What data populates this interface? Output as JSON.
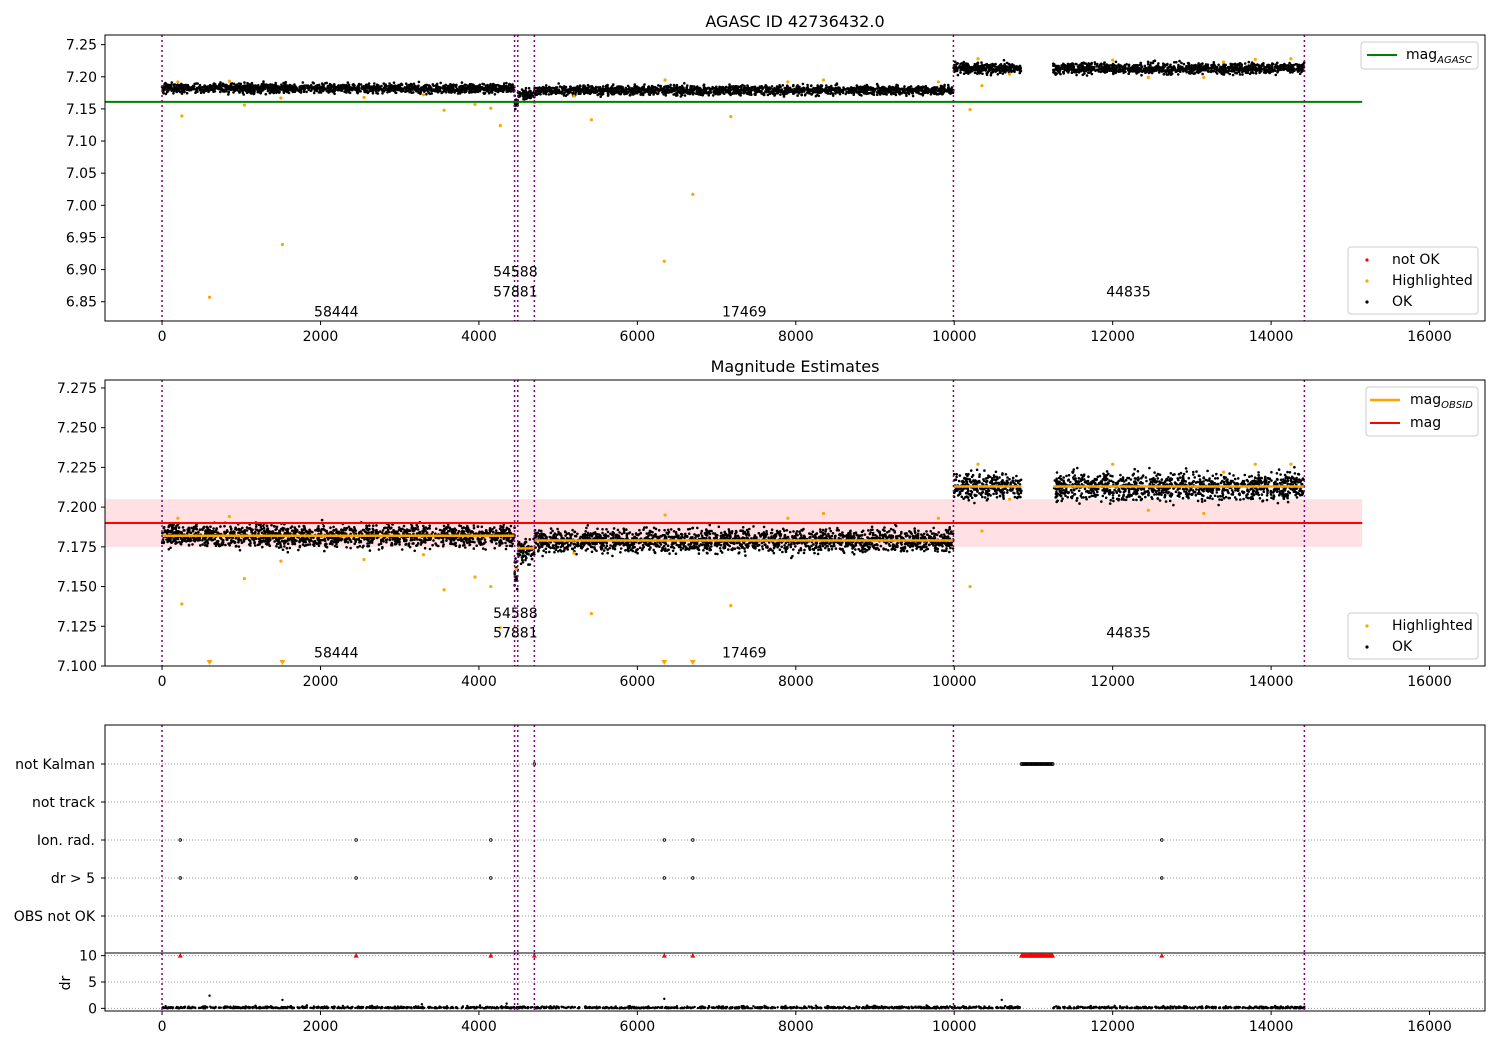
{
  "colors": {
    "ok": "#000000",
    "highlighted": "#ffa500",
    "not_ok": "#ff0000",
    "agasc": "#008000",
    "obsid_boundary": "#800080",
    "mag_band": "#ffdde0"
  },
  "chart_data": [
    {
      "type": "scatter",
      "title": "AGASC ID 42736432.0",
      "xlabel": "",
      "ylabel": "",
      "xlim": [
        -720,
        16700
      ],
      "ylim": [
        6.82,
        7.265
      ],
      "xticks": [
        0,
        2000,
        4000,
        6000,
        8000,
        10000,
        12000,
        14000,
        16000
      ],
      "yticks": [
        6.85,
        6.9,
        6.95,
        7.0,
        7.05,
        7.1,
        7.15,
        7.2,
        7.25
      ],
      "ytick_labels": [
        "6.85",
        "6.90",
        "6.95",
        "7.00",
        "7.05",
        "7.10",
        "7.15",
        "7.20",
        "7.25"
      ],
      "xtick_labels": [
        "0",
        "2000",
        "4000",
        "6000",
        "8000",
        "10000",
        "12000",
        "14000",
        "16000"
      ],
      "grid": false,
      "obsid_boundaries": [
        0,
        4450,
        4490,
        4700,
        9990,
        14420
      ],
      "obsid_labels": [
        {
          "text": "58444",
          "x": 2200,
          "y": 6.835
        },
        {
          "text": "57881",
          "x": 4460,
          "y": 6.866
        },
        {
          "text": "54588",
          "x": 4460,
          "y": 6.897
        },
        {
          "text": "17469",
          "x": 7350,
          "y": 6.835
        },
        {
          "text": "44835",
          "x": 12200,
          "y": 6.866
        }
      ],
      "lines": [
        {
          "name": "mag_AGASC",
          "y": 7.161,
          "x": [
            -720,
            15150
          ],
          "color": "#008000"
        }
      ],
      "segments": [
        {
          "x": [
            0,
            4450
          ],
          "mean": 7.182,
          "spread": 0.006
        },
        {
          "x": [
            4450,
            4490
          ],
          "mean": 7.162,
          "spread": 0.01
        },
        {
          "x": [
            4490,
            4700
          ],
          "mean": 7.172,
          "spread": 0.006
        },
        {
          "x": [
            4700,
            9990
          ],
          "mean": 7.179,
          "spread": 0.006
        },
        {
          "x": [
            9990,
            10850
          ],
          "mean": 7.213,
          "spread": 0.007
        },
        {
          "x": [
            11250,
            14420
          ],
          "mean": 7.213,
          "spread": 0.007
        }
      ],
      "highlighted_points": [
        [
          600,
          6.857
        ],
        [
          1520,
          6.939
        ],
        [
          6340,
          6.913
        ],
        [
          6700,
          7.017
        ],
        [
          250,
          7.139
        ],
        [
          1040,
          7.156
        ],
        [
          3560,
          7.148
        ],
        [
          3950,
          7.157
        ],
        [
          4150,
          7.151
        ],
        [
          4270,
          7.124
        ],
        [
          5420,
          7.133
        ],
        [
          7180,
          7.138
        ],
        [
          10200,
          7.149
        ],
        [
          10350,
          7.186
        ],
        [
          200,
          7.192
        ],
        [
          850,
          7.193
        ],
        [
          1500,
          7.167
        ],
        [
          2550,
          7.168
        ],
        [
          3300,
          7.172
        ],
        [
          5200,
          7.17
        ],
        [
          6350,
          7.195
        ],
        [
          7900,
          7.192
        ],
        [
          8350,
          7.195
        ],
        [
          9800,
          7.192
        ],
        [
          10300,
          7.228
        ],
        [
          10700,
          7.204
        ],
        [
          12000,
          7.226
        ],
        [
          12450,
          7.199
        ],
        [
          13150,
          7.199
        ],
        [
          13400,
          7.223
        ],
        [
          13800,
          7.227
        ],
        [
          14250,
          7.228
        ],
        [
          4700,
          7.16
        ]
      ],
      "legend": {
        "position": "lower-right",
        "entries": [
          "not OK",
          "Highlighted",
          "OK"
        ]
      },
      "legend_top": {
        "position": "upper-right",
        "entries": [
          "mag"
        ],
        "subscript": "AGASC"
      }
    },
    {
      "type": "scatter",
      "title": "Magnitude Estimates",
      "xlabel": "",
      "ylabel": "",
      "xlim": [
        -720,
        16700
      ],
      "ylim": [
        7.1,
        7.28
      ],
      "xticks": [
        0,
        2000,
        4000,
        6000,
        8000,
        10000,
        12000,
        14000,
        16000
      ],
      "yticks": [
        7.1,
        7.125,
        7.15,
        7.175,
        7.2,
        7.225,
        7.25,
        7.275
      ],
      "ytick_labels": [
        "7.100",
        "7.125",
        "7.150",
        "7.175",
        "7.200",
        "7.225",
        "7.250",
        "7.275"
      ],
      "xtick_labels": [
        "0",
        "2000",
        "4000",
        "6000",
        "8000",
        "10000",
        "12000",
        "14000",
        "16000"
      ],
      "grid": false,
      "obsid_boundaries": [
        0,
        4450,
        4490,
        4700,
        9990,
        14420
      ],
      "obsid_labels": [
        {
          "text": "58444",
          "x": 2200,
          "y": 7.1085
        },
        {
          "text": "57881",
          "x": 4460,
          "y": 7.121
        },
        {
          "text": "54588",
          "x": 4460,
          "y": 7.1335
        },
        {
          "text": "17469",
          "x": 7350,
          "y": 7.1085
        },
        {
          "text": "44835",
          "x": 12200,
          "y": 7.121
        }
      ],
      "mag": {
        "value": 7.19,
        "band": [
          7.175,
          7.205
        ],
        "x": [
          -720,
          15150
        ]
      },
      "mag_obsid": [
        {
          "x": [
            0,
            4450
          ],
          "y": 7.182
        },
        {
          "x": [
            4450,
            4490
          ],
          "y": 7.161
        },
        {
          "x": [
            4490,
            4700
          ],
          "y": 7.174
        },
        {
          "x": [
            4700,
            9990
          ],
          "y": 7.179
        },
        {
          "x": [
            9990,
            10850
          ],
          "y": 7.213
        },
        {
          "x": [
            11250,
            14420
          ],
          "y": 7.213
        }
      ],
      "segments": [
        {
          "x": [
            0,
            4450
          ],
          "mean": 7.182,
          "spread": 0.006
        },
        {
          "x": [
            4450,
            4490
          ],
          "mean": 7.16,
          "spread": 0.01
        },
        {
          "x": [
            4490,
            4700
          ],
          "mean": 7.172,
          "spread": 0.006
        },
        {
          "x": [
            4700,
            9990
          ],
          "mean": 7.179,
          "spread": 0.006
        },
        {
          "x": [
            9990,
            10850
          ],
          "mean": 7.213,
          "spread": 0.007
        },
        {
          "x": [
            11250,
            14420
          ],
          "mean": 7.213,
          "spread": 0.007
        }
      ],
      "highlighted_points": [
        [
          250,
          7.139
        ],
        [
          1040,
          7.155
        ],
        [
          3560,
          7.148
        ],
        [
          3950,
          7.156
        ],
        [
          4150,
          7.15
        ],
        [
          4270,
          7.124
        ],
        [
          5420,
          7.133
        ],
        [
          7180,
          7.138
        ],
        [
          10200,
          7.15
        ],
        [
          10350,
          7.185
        ],
        [
          200,
          7.193
        ],
        [
          850,
          7.194
        ],
        [
          1500,
          7.166
        ],
        [
          2550,
          7.167
        ],
        [
          3300,
          7.17
        ],
        [
          5200,
          7.171
        ],
        [
          6350,
          7.195
        ],
        [
          7900,
          7.193
        ],
        [
          8350,
          7.196
        ],
        [
          9800,
          7.193
        ],
        [
          10300,
          7.227
        ],
        [
          10700,
          7.205
        ],
        [
          12000,
          7.227
        ],
        [
          12450,
          7.198
        ],
        [
          13150,
          7.196
        ],
        [
          13400,
          7.222
        ],
        [
          13800,
          7.227
        ],
        [
          14250,
          7.227
        ]
      ],
      "off_scale_markers": [
        600,
        1520,
        6340,
        6700
      ],
      "legend": {
        "position": "lower-right",
        "entries": [
          "Highlighted",
          "OK"
        ]
      },
      "legend_top": {
        "position": "upper-right",
        "entries": [
          "mag",
          "mag"
        ],
        "subscript": "OBSID"
      }
    },
    {
      "type": "scatter",
      "title": "",
      "xlabel": "",
      "ylabel": "",
      "xlim": [
        -720,
        16700
      ],
      "xticks": [
        0,
        2000,
        4000,
        6000,
        8000,
        10000,
        12000,
        14000,
        16000
      ],
      "xtick_labels": [
        "0",
        "2000",
        "4000",
        "6000",
        "8000",
        "10000",
        "12000",
        "14000",
        "16000"
      ],
      "flag_rows": [
        "not Kalman",
        "not track",
        "Ion. rad.",
        "dr > 5",
        "OBS not OK"
      ],
      "obsid_boundaries": [
        0,
        4450,
        4490,
        4700,
        9990,
        14420
      ],
      "flag_points": {
        "not Kalman": [
          4700
        ],
        "not track": [],
        "Ion. rad.": [
          230,
          2450,
          4150,
          6340,
          6700,
          12620
        ],
        "dr > 5": [
          230,
          2450,
          4150,
          6340,
          6700,
          12620
        ],
        "OBS not OK": []
      },
      "not_kalman_range": [
        10850,
        11250
      ]
    },
    {
      "type": "scatter",
      "title": "",
      "xlabel": "",
      "ylabel": "dr",
      "xlim": [
        -720,
        16700
      ],
      "ylim": [
        -0.5,
        10.5
      ],
      "yticks": [
        0,
        5,
        10
      ],
      "ytick_labels": [
        "0",
        "5",
        "10"
      ],
      "xticks": [
        0,
        2000,
        4000,
        6000,
        8000,
        10000,
        12000,
        14000,
        16000
      ],
      "xtick_labels": [
        "0",
        "2000",
        "4000",
        "6000",
        "8000",
        "10000",
        "12000",
        "14000",
        "16000"
      ],
      "grid": true,
      "obsid_boundaries": [
        0,
        4450,
        4490,
        4700,
        9990,
        14420
      ],
      "capped_points": [
        230,
        2450,
        4150,
        4700,
        6340,
        6700,
        12620
      ],
      "capped_range": [
        10850,
        11250
      ],
      "cap_value": 10,
      "scattered": [
        [
          600,
          2.4
        ],
        [
          1520,
          1.6
        ],
        [
          6340,
          1.8
        ],
        [
          10600,
          1.6
        ],
        [
          3280,
          0.8
        ],
        [
          4350,
          0.9
        ]
      ],
      "baseline_segments": [
        [
          0,
          4450
        ],
        [
          4450,
          4700
        ],
        [
          4700,
          9990
        ],
        [
          9990,
          10850
        ],
        [
          11250,
          14420
        ]
      ]
    }
  ]
}
